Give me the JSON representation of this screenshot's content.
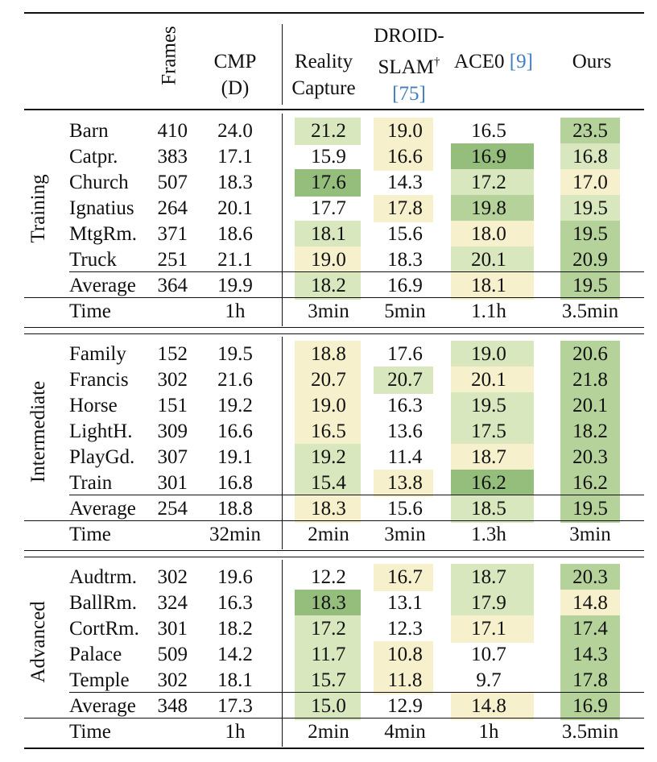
{
  "colors": {
    "level1": "#f6f0cc",
    "level2": "#d8e7bd",
    "level3": "#b6d29b",
    "level4": "#95bd7c"
  },
  "header": {
    "frames": "Frames",
    "cmp_line1": "CMP",
    "cmp_line2": "(D)",
    "rc_line1": "Reality",
    "rc_line2": "Capture",
    "droid_line1": "DROID-",
    "droid_line2_text": "SLAM",
    "droid_line2_sup": "†",
    "droid_cite": "[75]",
    "ace0_text": "ACE0 ",
    "ace0_cite": "[9]",
    "ours": "Ours"
  },
  "groups": [
    {
      "label": "Training",
      "rows": [
        {
          "scene": "Barn",
          "frames": "410",
          "cmp": "24.0",
          "vals": [
            "21.2",
            "19.0",
            "16.5",
            "23.5"
          ],
          "shade": [
            2,
            1,
            0,
            3
          ]
        },
        {
          "scene": "Catpr.",
          "frames": "383",
          "cmp": "17.1",
          "vals": [
            "15.9",
            "16.6",
            "16.9",
            "16.8"
          ],
          "shade": [
            0,
            1,
            4,
            2
          ]
        },
        {
          "scene": "Church",
          "frames": "507",
          "cmp": "18.3",
          "vals": [
            "17.6",
            "14.3",
            "17.2",
            "17.0"
          ],
          "shade": [
            4,
            0,
            2,
            1
          ]
        },
        {
          "scene": "Ignatius",
          "frames": "264",
          "cmp": "20.1",
          "vals": [
            "17.7",
            "17.8",
            "19.8",
            "19.5"
          ],
          "shade": [
            0,
            1,
            3,
            2
          ]
        },
        {
          "scene": "MtgRm.",
          "frames": "371",
          "cmp": "18.6",
          "vals": [
            "18.1",
            "15.6",
            "18.0",
            "19.5"
          ],
          "shade": [
            2,
            0,
            1,
            3
          ]
        },
        {
          "scene": "Truck",
          "frames": "251",
          "cmp": "21.1",
          "vals": [
            "19.0",
            "18.3",
            "20.1",
            "20.9"
          ],
          "shade": [
            1,
            0,
            2,
            3
          ]
        }
      ],
      "average": {
        "scene": "Average",
        "frames": "364",
        "cmp": "19.9",
        "vals": [
          "18.2",
          "16.9",
          "18.1",
          "19.5"
        ],
        "shade": [
          2,
          0,
          1,
          3
        ]
      },
      "time": {
        "label": "Time",
        "cmp": "1h",
        "vals": [
          "3min",
          "5min",
          "1.1h",
          "3.5min"
        ]
      }
    },
    {
      "label": "Intermediate",
      "rows": [
        {
          "scene": "Family",
          "frames": "152",
          "cmp": "19.5",
          "vals": [
            "18.8",
            "17.6",
            "19.0",
            "20.6"
          ],
          "shade": [
            1,
            0,
            2,
            3
          ]
        },
        {
          "scene": "Francis",
          "frames": "302",
          "cmp": "21.6",
          "vals": [
            "20.7",
            "20.7",
            "20.1",
            "21.8"
          ],
          "shade": [
            1,
            2,
            1,
            3
          ]
        },
        {
          "scene": "Horse",
          "frames": "151",
          "cmp": "19.2",
          "vals": [
            "19.0",
            "16.3",
            "19.5",
            "20.1"
          ],
          "shade": [
            1,
            0,
            2,
            3
          ]
        },
        {
          "scene": "LightH.",
          "frames": "309",
          "cmp": "16.6",
          "vals": [
            "16.5",
            "13.6",
            "17.5",
            "18.2"
          ],
          "shade": [
            1,
            0,
            2,
            3
          ]
        },
        {
          "scene": "PlayGd.",
          "frames": "307",
          "cmp": "19.1",
          "vals": [
            "19.2",
            "11.4",
            "18.7",
            "20.3"
          ],
          "shade": [
            2,
            0,
            1,
            3
          ]
        },
        {
          "scene": "Train",
          "frames": "301",
          "cmp": "16.8",
          "vals": [
            "15.4",
            "13.8",
            "16.2",
            "16.2"
          ],
          "shade": [
            2,
            1,
            4,
            3
          ]
        }
      ],
      "average": {
        "scene": "Average",
        "frames": "254",
        "cmp": "18.8",
        "vals": [
          "18.3",
          "15.6",
          "18.5",
          "19.5"
        ],
        "shade": [
          1,
          0,
          2,
          3
        ]
      },
      "time": {
        "label": "Time",
        "cmp": "32min",
        "vals": [
          "2min",
          "3min",
          "1.3h",
          "3min"
        ]
      }
    },
    {
      "label": "Advanced",
      "rows": [
        {
          "scene": "Audtrm.",
          "frames": "302",
          "cmp": "19.6",
          "vals": [
            "12.2",
            "16.7",
            "18.7",
            "20.3"
          ],
          "shade": [
            0,
            1,
            2,
            3
          ]
        },
        {
          "scene": "BallRm.",
          "frames": "324",
          "cmp": "16.3",
          "vals": [
            "18.3",
            "13.1",
            "17.9",
            "14.8"
          ],
          "shade": [
            4,
            0,
            2,
            1
          ]
        },
        {
          "scene": "CortRm.",
          "frames": "301",
          "cmp": "18.2",
          "vals": [
            "17.2",
            "12.3",
            "17.1",
            "17.4"
          ],
          "shade": [
            2,
            0,
            1,
            3
          ]
        },
        {
          "scene": "Palace",
          "frames": "509",
          "cmp": "14.2",
          "vals": [
            "11.7",
            "10.8",
            "10.7",
            "14.3"
          ],
          "shade": [
            2,
            1,
            0,
            3
          ]
        },
        {
          "scene": "Temple",
          "frames": "302",
          "cmp": "18.1",
          "vals": [
            "15.7",
            "11.8",
            "9.7",
            "17.8"
          ],
          "shade": [
            2,
            1,
            0,
            3
          ]
        },
        {
          "scene": "Average",
          "frames": "348",
          "cmp": "17.3",
          "vals": [
            "15.0",
            "12.9",
            "14.8",
            "16.9"
          ],
          "shade": [
            2,
            0,
            1,
            3
          ],
          "isAverage": true
        }
      ],
      "time": {
        "label": "Time",
        "cmp": "1h",
        "vals": [
          "2min",
          "4min",
          "1h",
          "3.5min"
        ]
      }
    }
  ]
}
